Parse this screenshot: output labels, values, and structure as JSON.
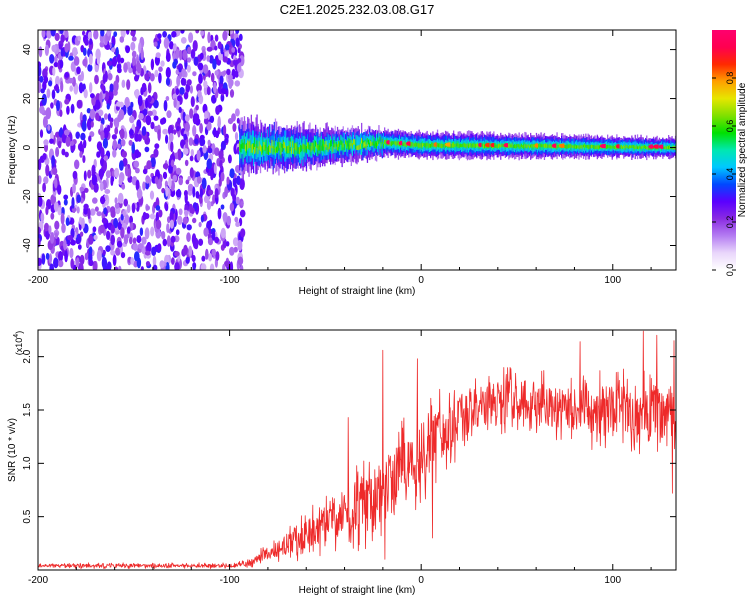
{
  "title": "C2E1.2025.232.03.08.G17",
  "chart_data": [
    {
      "type": "heatmap",
      "title": "C2E1.2025.232.03.08.G17",
      "xlabel": "Height of straight line (km)",
      "ylabel": "Frequency (Hz)",
      "xlim": [
        -200,
        133
      ],
      "ylim": [
        -50,
        48
      ],
      "x_ticks": [
        -200,
        -100,
        0,
        100
      ],
      "y_ticks": [
        -40,
        -20,
        0,
        20,
        40
      ],
      "x_tick_labels": [
        "-200",
        "-100",
        "0",
        "100"
      ],
      "y_tick_labels": [
        "-40",
        "-20",
        "0",
        "20",
        "40"
      ],
      "noise_region_x": [
        -200,
        -93
      ],
      "signal_band": {
        "x_start": -95,
        "center_freq_hz": [
          {
            "x": -95,
            "f": 0
          },
          {
            "x": -60,
            "f": 0
          },
          {
            "x": -20,
            "f": 2
          },
          {
            "x": 0,
            "f": 1
          },
          {
            "x": 133,
            "f": 0
          }
        ],
        "half_width_hz": [
          {
            "x": -95,
            "w": 8
          },
          {
            "x": -40,
            "w": 5
          },
          {
            "x": -20,
            "w": 4
          },
          {
            "x": 133,
            "w": 3
          }
        ]
      },
      "colorbar": {
        "label": "Normalized spectral amplitude",
        "min": 0.0,
        "max": 1.0,
        "ticks": [
          0.0,
          0.2,
          0.4,
          0.6,
          0.8
        ],
        "tick_labels": [
          "0.0",
          "0.2",
          "0.4",
          "0.6",
          "0.8"
        ],
        "colors": [
          "#ffffff",
          "#e9d6fb",
          "#b47cf2",
          "#8a2be2",
          "#5a00ff",
          "#0048ff",
          "#00c8ff",
          "#00e8b0",
          "#00e000",
          "#80e000",
          "#e6e600",
          "#ffa000",
          "#ff2a00",
          "#ff0050",
          "#ff006e"
        ]
      }
    },
    {
      "type": "line",
      "xlabel": "Height of straight line (km)",
      "ylabel": "SNR (10 * v/v)",
      "y_scale_note": "(x10",
      "y_scale_exp": "4",
      "xlim": [
        -200,
        133
      ],
      "ylim": [
        0,
        2.25
      ],
      "x_ticks": [
        -200,
        -100,
        0,
        100
      ],
      "y_ticks": [
        0.5,
        1.0,
        1.5,
        2.0
      ],
      "x_tick_labels": [
        "-200",
        "-100",
        "0",
        "100"
      ],
      "y_tick_labels": [
        "0.5",
        "1.0",
        "1.5",
        "2.0"
      ],
      "series": [
        {
          "name": "SNR",
          "color": "#ee2a2a",
          "trend": {
            "x": [
              -200,
              -100,
              -90,
              -80,
              -70,
              -60,
              -50,
              -40,
              -30,
              -20,
              -10,
              0,
              10,
              20,
              30,
              40,
              50,
              60,
              70,
              80,
              90,
              100,
              110,
              120,
              133
            ],
            "y": [
              0.04,
              0.04,
              0.06,
              0.15,
              0.25,
              0.35,
              0.45,
              0.55,
              0.62,
              0.72,
              0.9,
              1.1,
              1.28,
              1.42,
              1.52,
              1.58,
              1.6,
              1.57,
              1.54,
              1.52,
              1.5,
              1.5,
              1.5,
              1.48,
              1.47
            ]
          },
          "noise_amplitude": {
            "x": [
              -200,
              -100,
              -90,
              -80,
              -60,
              -40,
              -30,
              -20,
              0,
              20,
              40,
              60,
              80,
              100,
              133
            ],
            "a": [
              0.02,
              0.02,
              0.03,
              0.08,
              0.18,
              0.28,
              0.35,
              0.4,
              0.35,
              0.28,
              0.22,
              0.24,
              0.26,
              0.28,
              0.3
            ]
          },
          "spikes": [
            {
              "x": -38,
              "y": 1.43
            },
            {
              "x": -33,
              "y": 0.92
            },
            {
              "x": -29,
              "y": 0.2
            },
            {
              "x": -20,
              "y": 2.06
            },
            {
              "x": -19,
              "y": 0.1
            },
            {
              "x": -2,
              "y": 1.98
            },
            {
              "x": 6,
              "y": 0.3
            },
            {
              "x": 83,
              "y": 2.14
            },
            {
              "x": 116,
              "y": 2.24
            },
            {
              "x": 123,
              "y": 2.2
            },
            {
              "x": 132,
              "y": 2.15
            },
            {
              "x": 131,
              "y": 0.72
            }
          ]
        }
      ]
    }
  ]
}
